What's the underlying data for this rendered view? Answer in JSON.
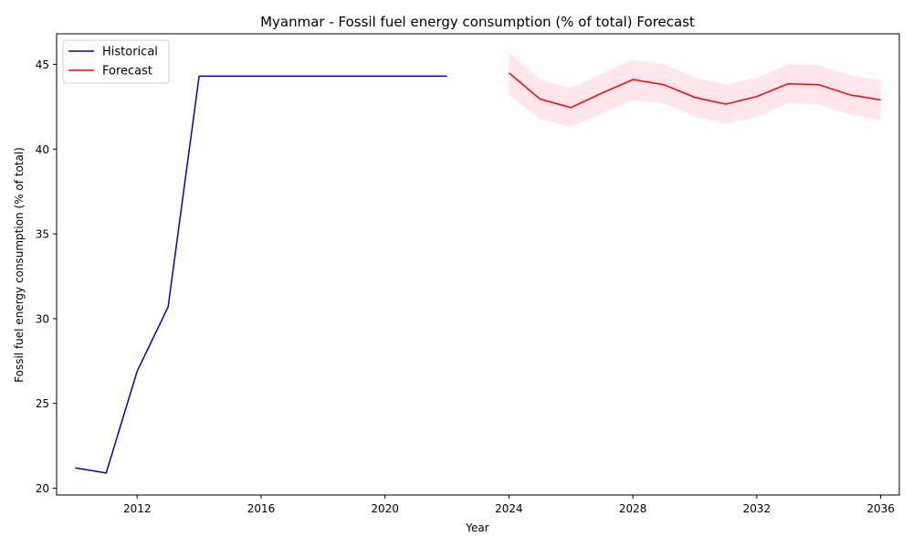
{
  "chart_data": {
    "type": "line",
    "title": "Myanmar - Fossil fuel energy consumption (% of total) Forecast",
    "xlabel": "Year",
    "ylabel": "Fossil fuel energy consumption (% of total)",
    "xlim": [
      2009.4,
      2036.6
    ],
    "ylim": [
      19.6,
      46.8
    ],
    "xticks": [
      2012,
      2016,
      2020,
      2024,
      2028,
      2032,
      2036
    ],
    "yticks": [
      20,
      25,
      30,
      35,
      40,
      45
    ],
    "grid": false,
    "legend_position": "top-left",
    "series": [
      {
        "name": "Historical",
        "color": "#0000cc",
        "x": [
          2010,
          2011,
          2012,
          2013,
          2014,
          2015,
          2016,
          2017,
          2018,
          2019,
          2020,
          2021,
          2022
        ],
        "y": [
          21.2,
          20.9,
          26.9,
          30.7,
          44.3,
          44.3,
          44.3,
          44.3,
          44.3,
          44.3,
          44.3,
          44.3,
          44.3
        ]
      },
      {
        "name": "Forecast",
        "color": "#ff0000",
        "band_color": "#ffc0cb",
        "x": [
          2024,
          2025,
          2026,
          2027,
          2028,
          2029,
          2030,
          2031,
          2032,
          2033,
          2034,
          2035,
          2036
        ],
        "y": [
          44.5,
          42.95,
          42.45,
          43.3,
          44.1,
          43.8,
          43.05,
          42.65,
          43.1,
          43.85,
          43.8,
          43.2,
          42.9
        ],
        "lower": [
          43.2,
          41.8,
          41.3,
          42.1,
          42.9,
          42.7,
          41.9,
          41.5,
          41.9,
          42.7,
          42.65,
          42.05,
          41.7
        ],
        "upper": [
          45.7,
          44.1,
          43.6,
          44.45,
          45.25,
          45.0,
          44.2,
          43.8,
          44.2,
          45.0,
          44.95,
          44.35,
          44.05
        ]
      }
    ]
  }
}
